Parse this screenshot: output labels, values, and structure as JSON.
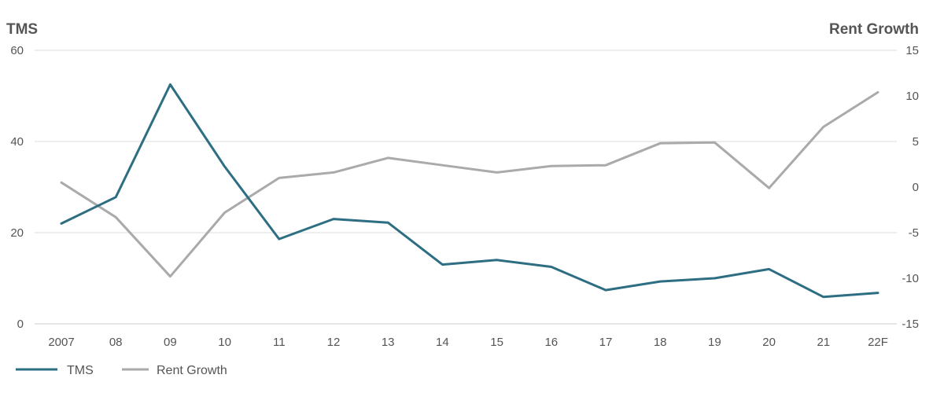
{
  "chart_data": {
    "type": "line",
    "left_axis_title": "TMS",
    "right_axis_title": "Rent Growth",
    "categories": [
      "2007",
      "08",
      "09",
      "10",
      "11",
      "12",
      "13",
      "14",
      "15",
      "16",
      "17",
      "18",
      "19",
      "20",
      "21",
      "22F"
    ],
    "left_ylim": [
      0,
      60
    ],
    "left_ticks": [
      "60",
      "40",
      "20",
      "0"
    ],
    "right_ylim": [
      -15,
      15
    ],
    "right_ticks": [
      "15",
      "10",
      "5",
      "0",
      "-5",
      "-10",
      "-15"
    ],
    "grid": true,
    "legend_position": "bottom-left",
    "series": [
      {
        "name": "TMS",
        "axis": "left",
        "color": "#2e6e83",
        "values": [
          22.0,
          27.8,
          52.5,
          34.5,
          18.6,
          23.0,
          22.2,
          13.0,
          14.0,
          12.5,
          7.4,
          9.3,
          10.0,
          12.0,
          5.9,
          6.8
        ]
      },
      {
        "name": "Rent Growth",
        "axis": "right",
        "color": "#aaaaaa",
        "values": [
          0.5,
          -3.3,
          -9.8,
          -2.8,
          1.0,
          1.6,
          3.2,
          2.4,
          1.6,
          2.3,
          2.4,
          4.8,
          4.9,
          -0.1,
          6.6,
          10.4
        ]
      }
    ]
  }
}
